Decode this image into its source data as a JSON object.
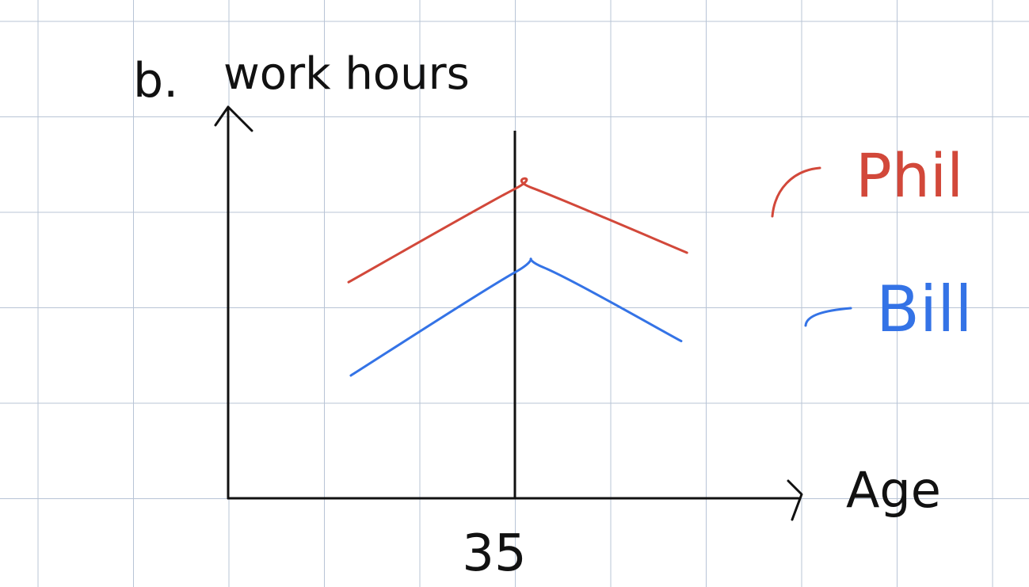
{
  "chart_data": {
    "type": "line",
    "part_label": "b.",
    "ylabel": "work hours",
    "xlabel": "Age",
    "x_marker": {
      "value": 35,
      "label": "35"
    },
    "series": [
      {
        "name": "Phil",
        "color": "#d2483a",
        "points": [
          [
            20.5,
            4.4
          ],
          [
            35,
            6.3
          ],
          [
            36.5,
            6.32
          ],
          [
            50,
            5.0
          ]
        ]
      },
      {
        "name": "Bill",
        "color": "#3473e6",
        "points": [
          [
            20.7,
            2.5
          ],
          [
            35,
            4.6
          ],
          [
            37.5,
            4.7
          ],
          [
            49.5,
            3.2
          ]
        ]
      }
    ],
    "axis_color": "#111111",
    "grid": true,
    "grid_color": "#b8c4d6"
  }
}
